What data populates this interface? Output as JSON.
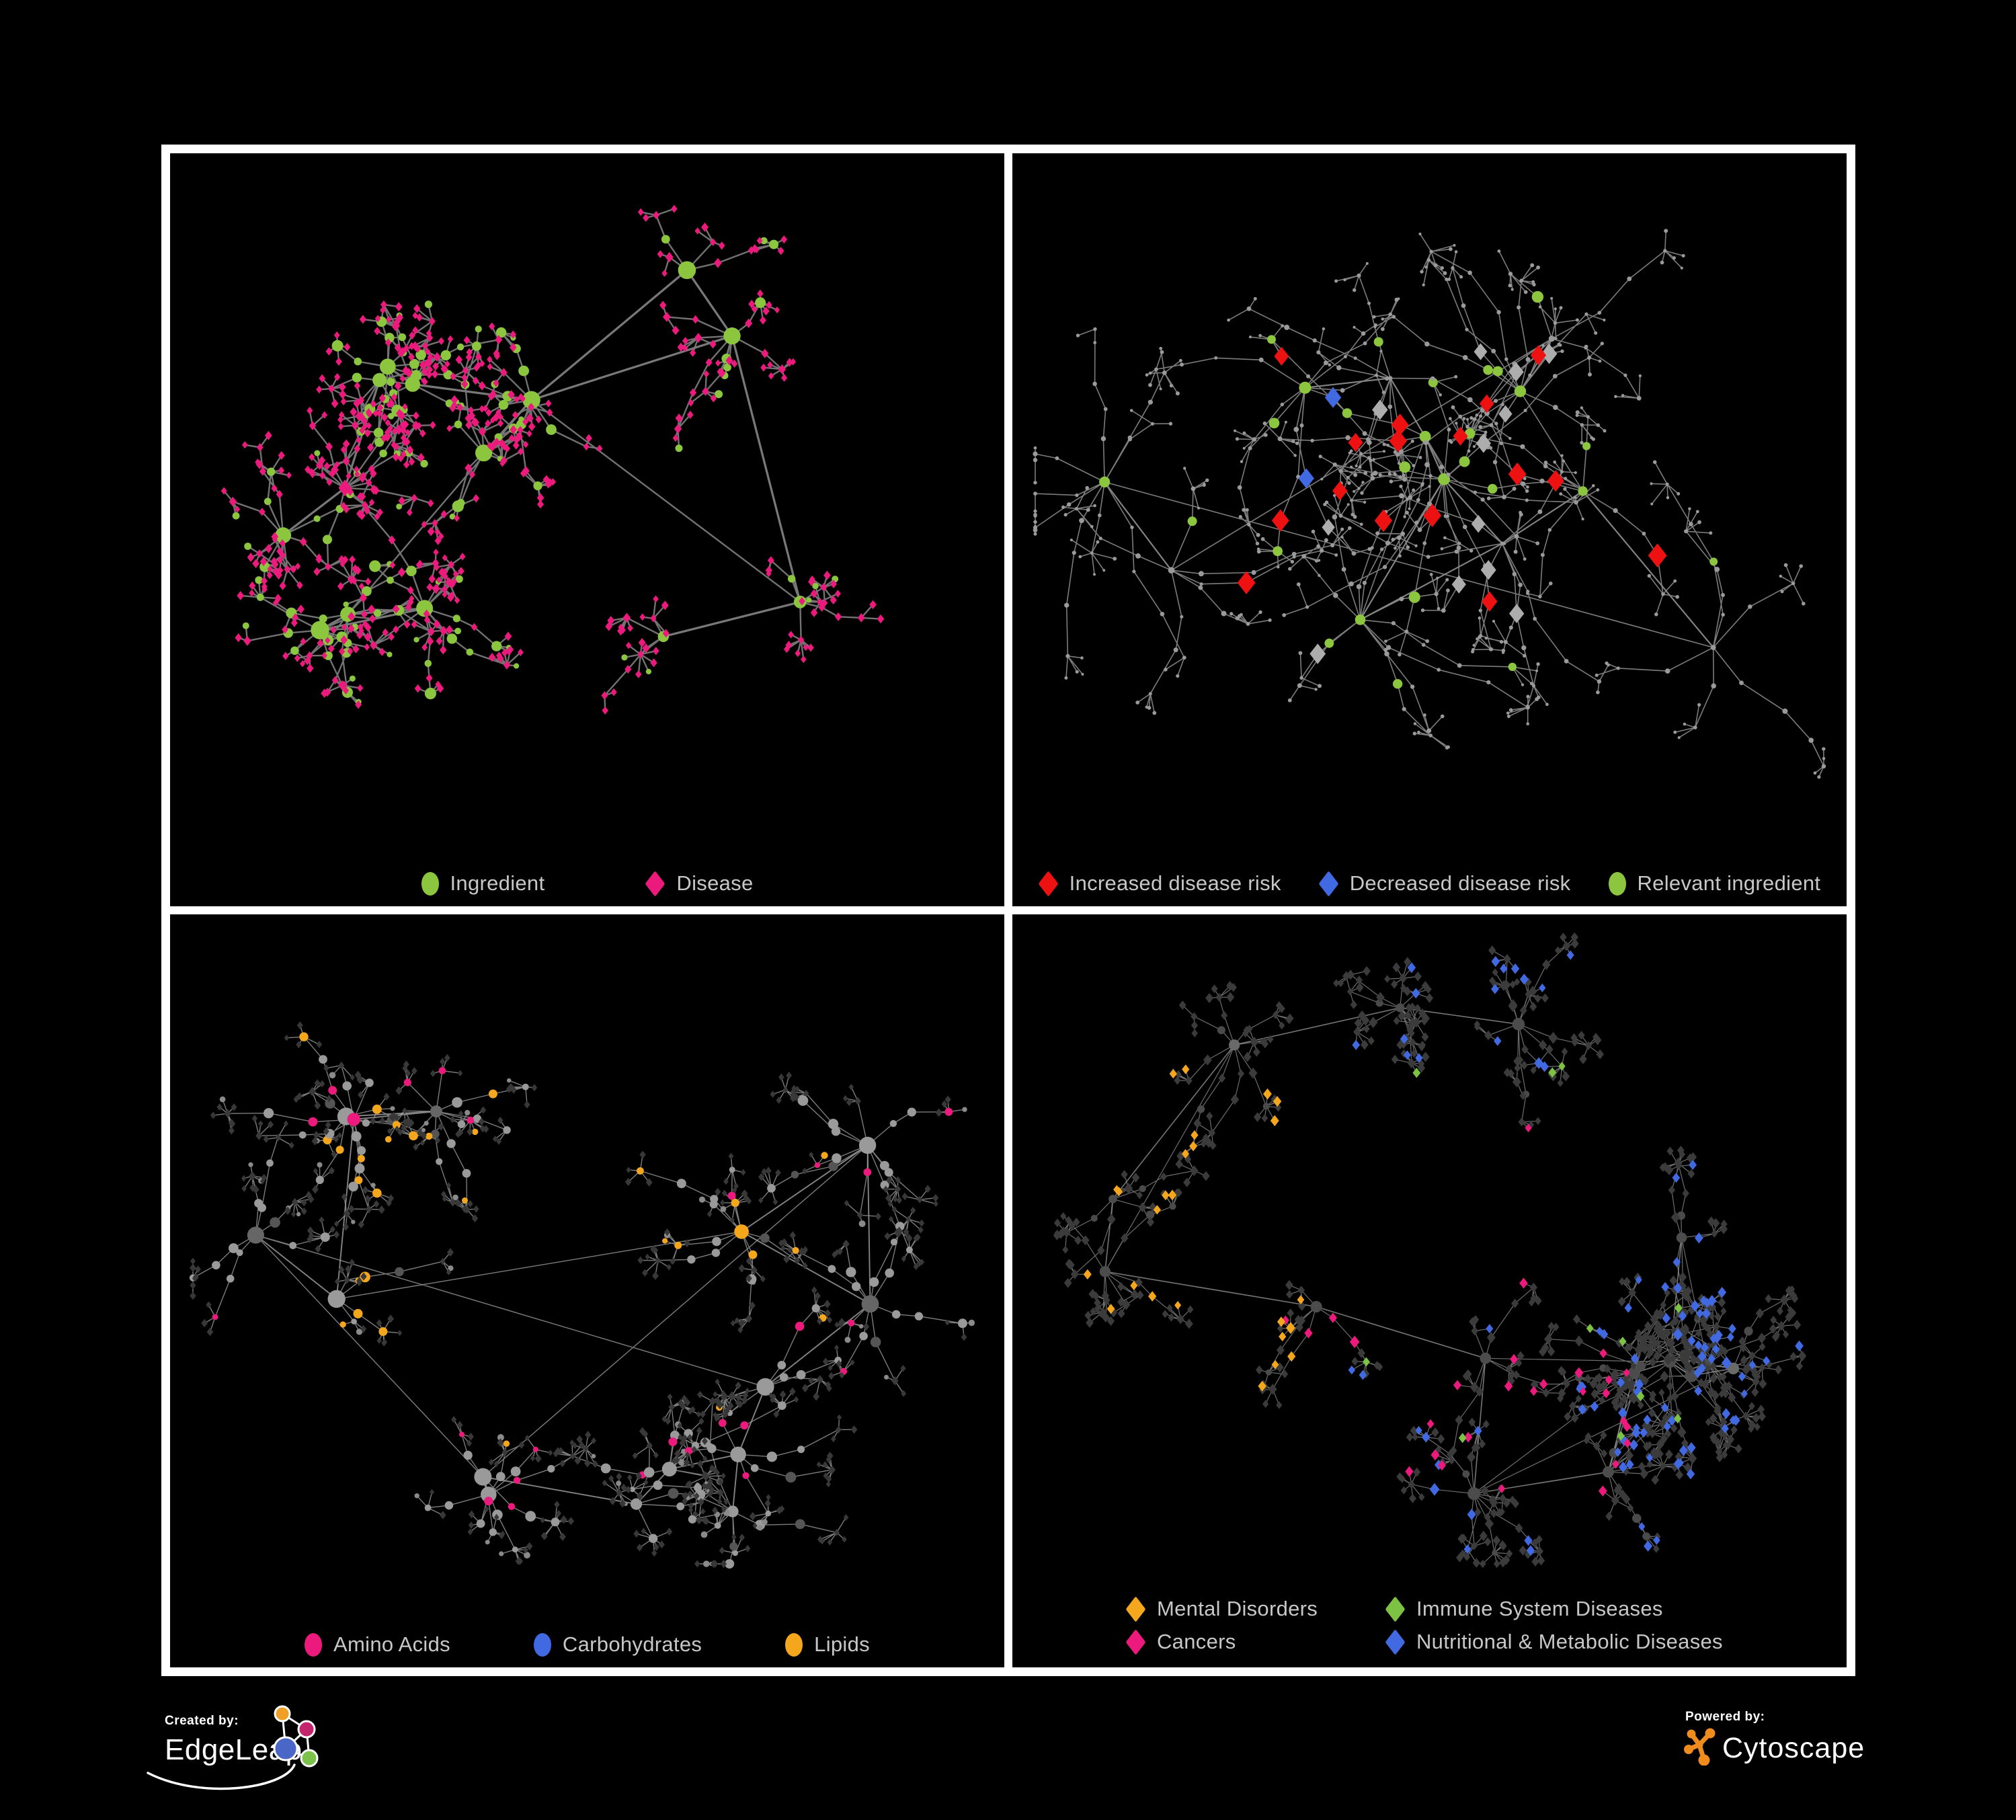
{
  "figure": {
    "background": "#000000",
    "panel_border_color": "#FFFFFF"
  },
  "panels": [
    {
      "name": "ingredient-disease-network",
      "legend": {
        "items": [
          {
            "label": "Ingredient",
            "shape": "circle",
            "color": "#8CC63F"
          },
          {
            "label": "Disease",
            "shape": "diamond",
            "color": "#EC1A7C"
          }
        ]
      },
      "network": {
        "seed": 11,
        "clusters": 14,
        "branches": [
          4,
          10
        ],
        "chain": [
          1,
          3
        ],
        "step": [
          28,
          62
        ],
        "star": [
          2,
          7
        ],
        "ray": [
          13,
          30
        ],
        "extra": 5,
        "edge": {
          "color": "#787878",
          "width": 2.4,
          "opacity": 0.95
        },
        "styles": {
          "hub": [
            {
              "shape": "circle",
              "color": "#8CC63F",
              "r": [
                8,
                15
              ],
              "w": 0.85
            },
            {
              "shape": "diamond",
              "color": "#EC1A7C",
              "r": [
                8,
                12
              ],
              "w": 0.15
            }
          ],
          "mid": [
            {
              "shape": "circle",
              "color": "#8CC63F",
              "r": [
                5,
                8
              ],
              "w": 0.5
            },
            {
              "shape": "diamond",
              "color": "#EC1A7C",
              "r": [
                4.5,
                6
              ],
              "w": 0.5
            }
          ],
          "sub": [
            {
              "shape": "circle",
              "color": "#8CC63F",
              "r": [
                5,
                9
              ],
              "w": 0.35
            },
            {
              "shape": "diamond",
              "color": "#EC1A7C",
              "r": [
                4.5,
                6
              ],
              "w": 0.65
            }
          ],
          "leaf": [
            {
              "shape": "diamond",
              "color": "#EC1A7C",
              "r": [
                4,
                5.5
              ],
              "w": 0.9
            },
            {
              "shape": "circle",
              "color": "#8CC63F",
              "r": [
                4,
                6
              ],
              "w": 0.1
            }
          ]
        }
      }
    },
    {
      "name": "disease-risk-network",
      "legend": {
        "items": [
          {
            "label": "Increased disease risk",
            "shape": "diamond",
            "color": "#EE1111"
          },
          {
            "label": "Decreased disease risk",
            "shape": "diamond",
            "color": "#4169E1"
          },
          {
            "label": "Relevant ingredient",
            "shape": "circle",
            "color": "#8CC63F"
          }
        ]
      },
      "network": {
        "seed": 23,
        "clusters": 12,
        "branches": [
          5,
          11
        ],
        "chain": [
          2,
          4
        ],
        "step": [
          38,
          82
        ],
        "star": [
          2,
          6
        ],
        "ray": [
          16,
          38
        ],
        "extra": 4,
        "edge": {
          "color": "#8A8A8A",
          "width": 1.6,
          "opacity": 0.9
        },
        "styles": {
          "hub": [
            {
              "shape": "circle",
              "color": "#9A9A9A",
              "r": [
                3,
                5
              ],
              "w": 0.55
            },
            {
              "shape": "circle",
              "color": "#8CC63F",
              "r": [
                7,
                10
              ],
              "w": 0.45,
              "zone": [
                0.1,
                0.9,
                0.15,
                0.85
              ]
            }
          ],
          "mid": [
            {
              "shape": "circle",
              "color": "#9A9A9A",
              "r": [
                2.5,
                4
              ],
              "w": 0.8
            },
            {
              "shape": "diamond",
              "color": "#EE1111",
              "r": [
                10,
                14
              ],
              "w": 0.1,
              "zone": [
                0.22,
                0.8,
                0.25,
                0.8
              ]
            },
            {
              "shape": "diamond",
              "color": "#4169E1",
              "r": [
                10,
                13
              ],
              "w": 0.05,
              "zone": [
                0.2,
                0.45,
                0.3,
                0.7
              ]
            },
            {
              "shape": "diamond",
              "color": "#4169E1",
              "r": [
                10,
                13
              ],
              "w": 0.1,
              "zone": [
                0.78,
                0.98,
                0.1,
                0.3
              ]
            },
            {
              "shape": "diamond",
              "color": "#ADADAD",
              "r": [
                9,
                12
              ],
              "w": 0.05,
              "zone": [
                0.15,
                0.75,
                0.28,
                0.8
              ]
            },
            {
              "shape": "circle",
              "color": "#8CC63F",
              "r": [
                6,
                9
              ],
              "w": 0.06,
              "zone": [
                0.1,
                0.9,
                0.15,
                0.85
              ]
            }
          ],
          "sub": [
            {
              "shape": "circle",
              "color": "#9A9A9A",
              "r": [
                2.5,
                3.5
              ],
              "w": 0.9
            },
            {
              "shape": "diamond",
              "color": "#EE1111",
              "r": [
                10,
                13
              ],
              "w": 0.06,
              "zone": [
                0.25,
                0.85,
                0.3,
                0.85
              ]
            },
            {
              "shape": "circle",
              "color": "#8CC63F",
              "r": [
                6,
                8
              ],
              "w": 0.04,
              "zone": [
                0.1,
                0.9,
                0.2,
                0.9
              ]
            }
          ],
          "leaf": [
            {
              "shape": "circle",
              "color": "#9A9A9A",
              "r": [
                2,
                3
              ],
              "w": 0.99
            },
            {
              "shape": "diamond",
              "color": "#EE1111",
              "r": [
                9,
                12
              ],
              "w": 0.01,
              "zone": [
                0.3,
                0.9,
                0.3,
                0.9
              ]
            }
          ]
        }
      }
    },
    {
      "name": "nutrient-class-network",
      "legend": {
        "items": [
          {
            "label": "Amino Acids",
            "shape": "circle",
            "color": "#EC1A7C"
          },
          {
            "label": "Carbohydrates",
            "shape": "circle",
            "color": "#4169E1"
          },
          {
            "label": "Lipids",
            "shape": "circle",
            "color": "#F4A71D"
          }
        ]
      },
      "network": {
        "seed": 37,
        "clusters": 15,
        "branches": [
          4,
          10
        ],
        "chain": [
          1,
          3
        ],
        "step": [
          30,
          68
        ],
        "star": [
          3,
          8
        ],
        "ray": [
          13,
          27
        ],
        "extra": 5,
        "edge": {
          "color": "#9B9B9B",
          "width": 1.4,
          "opacity": 0.8
        },
        "styles": {
          "hub": [
            {
              "shape": "circle",
              "color": "#9A9A9A",
              "r": [
                8,
                14
              ],
              "w": 0.5
            },
            {
              "shape": "circle",
              "color": "#666666",
              "r": [
                8,
                13
              ],
              "w": 0.15
            },
            {
              "shape": "circle",
              "color": "#F4A71D",
              "r": [
                7,
                11
              ],
              "w": 0.25,
              "zone": [
                0.2,
                0.7,
                0.08,
                0.6
              ]
            },
            {
              "shape": "circle",
              "color": "#EC1A7C",
              "r": [
                7,
                10
              ],
              "w": 0.1
            }
          ],
          "mid": [
            {
              "shape": "circle",
              "color": "#9A9A9A",
              "r": [
                5,
                8
              ],
              "w": 0.42
            },
            {
              "shape": "circle",
              "color": "#555555",
              "r": [
                5,
                8
              ],
              "w": 0.12
            },
            {
              "shape": "circle",
              "color": "#F4A71D",
              "r": [
                5,
                8
              ],
              "w": 0.25,
              "zone": [
                0.2,
                0.72,
                0.05,
                0.62
              ]
            },
            {
              "shape": "circle",
              "color": "#4169E1",
              "r": [
                5,
                7
              ],
              "w": 0.1,
              "zone": [
                0.25,
                0.6,
                0.1,
                0.5
              ]
            },
            {
              "shape": "circle",
              "color": "#EC1A7C",
              "r": [
                5,
                7
              ],
              "w": 0.11
            }
          ],
          "sub": [
            {
              "shape": "diamond",
              "color": "#3A3A3A",
              "r": [
                4,
                5.5
              ],
              "w": 0.5
            },
            {
              "shape": "circle",
              "color": "#9A9A9A",
              "r": [
                4,
                7
              ],
              "w": 0.3
            },
            {
              "shape": "circle",
              "color": "#F4A71D",
              "r": [
                5,
                7
              ],
              "w": 0.12,
              "zone": [
                0.15,
                0.75,
                0.05,
                0.65
              ]
            },
            {
              "shape": "circle",
              "color": "#EC1A7C",
              "r": [
                4,
                6
              ],
              "w": 0.08
            }
          ],
          "leaf": [
            {
              "shape": "diamond",
              "color": "#383838",
              "r": [
                3.5,
                5
              ],
              "w": 0.86
            },
            {
              "shape": "circle",
              "color": "#8A8A8A",
              "r": [
                3,
                5
              ],
              "w": 0.1
            },
            {
              "shape": "circle",
              "color": "#F4A71D",
              "r": [
                4,
                6
              ],
              "w": 0.04,
              "zone": [
                0.2,
                0.8,
                0.1,
                0.8
              ]
            }
          ]
        }
      }
    },
    {
      "name": "disease-class-network",
      "legend": {
        "items": [
          {
            "label": "Mental Disorders",
            "shape": "diamond",
            "color": "#F4A71D"
          },
          {
            "label": "Immune System Diseases",
            "shape": "diamond",
            "color": "#7DC242"
          },
          {
            "label": "Cancers",
            "shape": "diamond",
            "color": "#EC1A7C"
          },
          {
            "label": "Nutritional & Metabolic Diseases",
            "shape": "diamond",
            "color": "#4169E1"
          }
        ]
      },
      "network": {
        "seed": 53,
        "clusters": 16,
        "branches": [
          5,
          11
        ],
        "chain": [
          1,
          3
        ],
        "step": [
          28,
          62
        ],
        "star": [
          3,
          8
        ],
        "ray": [
          13,
          26
        ],
        "extra": 6,
        "edge": {
          "color": "#9B9B9B",
          "width": 1.2,
          "opacity": 0.7
        },
        "styles": {
          "hub": [
            {
              "shape": "circle",
              "color": "#4C4C4C",
              "r": [
                6,
                10
              ],
              "w": 0.7
            },
            {
              "shape": "circle",
              "color": "#6A6A6A",
              "r": [
                6,
                9
              ],
              "w": 0.3
            }
          ],
          "mid": [
            {
              "shape": "diamond",
              "color": "#3B3B3B",
              "r": [
                5,
                7
              ],
              "w": 0.52
            },
            {
              "shape": "diamond",
              "color": "#F4A71D",
              "r": [
                5.5,
                7.5
              ],
              "w": 0.16,
              "zone": [
                0.02,
                0.38,
                0.25,
                0.8
              ]
            },
            {
              "shape": "diamond",
              "color": "#EC1A7C",
              "r": [
                5.5,
                7.5
              ],
              "w": 0.12,
              "zone": [
                0.3,
                0.72,
                0.3,
                0.85
              ]
            },
            {
              "shape": "diamond",
              "color": "#4169E1",
              "r": [
                5.5,
                7.5
              ],
              "w": 0.13,
              "zone": [
                0.45,
                0.98,
                0.02,
                0.95
              ]
            },
            {
              "shape": "diamond",
              "color": "#7DC242",
              "r": [
                5.5,
                7
              ],
              "w": 0.02,
              "zone": [
                0.25,
                0.75,
                0.25,
                0.8
              ]
            },
            {
              "shape": "circle",
              "color": "#4A4A4A",
              "r": [
                5,
                7
              ],
              "w": 0.05
            }
          ],
          "sub": [
            {
              "shape": "diamond",
              "color": "#3B3B3B",
              "r": [
                4.5,
                6.5
              ],
              "w": 0.55
            },
            {
              "shape": "diamond",
              "color": "#F4A71D",
              "r": [
                5,
                7
              ],
              "w": 0.14,
              "zone": [
                0.02,
                0.4,
                0.2,
                0.85
              ]
            },
            {
              "shape": "diamond",
              "color": "#EC1A7C",
              "r": [
                5,
                7
              ],
              "w": 0.11,
              "zone": [
                0.3,
                0.75,
                0.3,
                0.9
              ]
            },
            {
              "shape": "diamond",
              "color": "#4169E1",
              "r": [
                5,
                7
              ],
              "w": 0.13,
              "zone": [
                0.4,
                0.98,
                0.02,
                0.95
              ]
            },
            {
              "shape": "diamond",
              "color": "#7DC242",
              "r": [
                5,
                6
              ],
              "w": 0.02,
              "zone": [
                0.25,
                0.8,
                0.2,
                0.8
              ]
            },
            {
              "shape": "circle",
              "color": "#4A4A4A",
              "r": [
                4,
                6
              ],
              "w": 0.05
            }
          ],
          "leaf": [
            {
              "shape": "diamond",
              "color": "#3B3B3B",
              "r": [
                4.5,
                6
              ],
              "w": 0.62
            },
            {
              "shape": "diamond",
              "color": "#F4A71D",
              "r": [
                5,
                6.5
              ],
              "w": 0.13,
              "zone": [
                0.02,
                0.4,
                0.2,
                0.85
              ]
            },
            {
              "shape": "diamond",
              "color": "#EC1A7C",
              "r": [
                5,
                6.5
              ],
              "w": 0.1,
              "zone": [
                0.3,
                0.75,
                0.3,
                0.9
              ]
            },
            {
              "shape": "diamond",
              "color": "#4169E1",
              "r": [
                5,
                6.5
              ],
              "w": 0.13,
              "zone": [
                0.4,
                0.98,
                0.02,
                0.95
              ]
            },
            {
              "shape": "diamond",
              "color": "#7DC242",
              "r": [
                5,
                6
              ],
              "w": 0.02,
              "zone": [
                0.25,
                0.8,
                0.2,
                0.8
              ]
            }
          ]
        }
      }
    }
  ],
  "footer": {
    "created_by": {
      "label": "Created by:",
      "brand": "EdgeLeap",
      "logo_colors": {
        "orange": "#F0A125",
        "pink": "#C4246E",
        "blue": "#4A67C7",
        "green": "#7CC24A",
        "line": "#FFFFFF"
      }
    },
    "powered_by": {
      "label": "Powered by:",
      "brand": "Cytoscape",
      "logo_color": "#F08B1E"
    }
  }
}
